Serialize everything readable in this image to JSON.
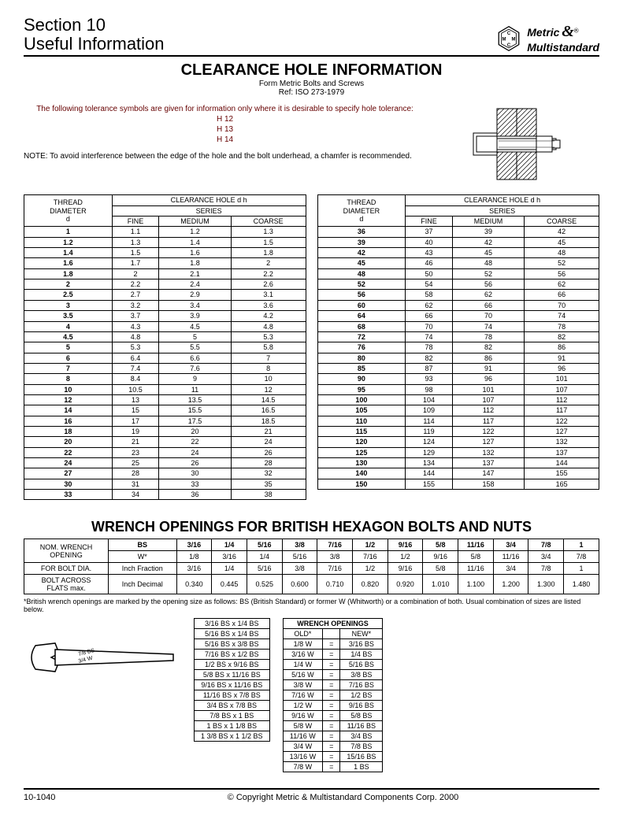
{
  "header": {
    "section_line1": "Section 10",
    "section_line2": "Useful Information",
    "brand1": "Metric",
    "brand2": "Multistandard",
    "amp": "&"
  },
  "title": "CLEARANCE HOLE INFORMATION",
  "subtitle1": "Form Metric Bolts and Screws",
  "subtitle2": "Ref: ISO 273-1979",
  "intro": {
    "lead": "The following tolerance symbols are given for information only where it is desirable to specify hole tolerance:",
    "t1": "H 12",
    "t2": "H 13",
    "t3": "H 14",
    "note": "NOTE: To avoid interference between the edge of the hole and the bolt underhead, a chamfer is recommended."
  },
  "clearTableHead": {
    "thread": "THREAD DIAMETER d",
    "clear": "CLEARANCE HOLE d h",
    "series": "SERIES",
    "fine": "FINE",
    "medium": "MEDIUM",
    "coarse": "COARSE"
  },
  "clear1": [
    [
      "1",
      "1.1",
      "1.2",
      "1.3"
    ],
    [
      "1.2",
      "1.3",
      "1.4",
      "1.5"
    ],
    [
      "1.4",
      "1.5",
      "1.6",
      "1.8"
    ],
    [
      "1.6",
      "1.7",
      "1.8",
      "2"
    ],
    [
      "1.8",
      "2",
      "2.1",
      "2.2"
    ],
    [
      "2",
      "2.2",
      "2.4",
      "2.6"
    ],
    [
      "2.5",
      "2.7",
      "2.9",
      "3.1"
    ],
    [
      "3",
      "3.2",
      "3.4",
      "3.6"
    ],
    [
      "3.5",
      "3.7",
      "3.9",
      "4.2"
    ],
    [
      "4",
      "4.3",
      "4.5",
      "4.8"
    ],
    [
      "4.5",
      "4.8",
      "5",
      "5.3"
    ],
    [
      "5",
      "5.3",
      "5.5",
      "5.8"
    ],
    [
      "6",
      "6.4",
      "6.6",
      "7"
    ],
    [
      "7",
      "7.4",
      "7.6",
      "8"
    ],
    [
      "8",
      "8.4",
      "9",
      "10"
    ],
    [
      "10",
      "10.5",
      "11",
      "12"
    ],
    [
      "12",
      "13",
      "13.5",
      "14.5"
    ],
    [
      "14",
      "15",
      "15.5",
      "16.5"
    ],
    [
      "16",
      "17",
      "17.5",
      "18.5"
    ],
    [
      "18",
      "19",
      "20",
      "21"
    ],
    [
      "20",
      "21",
      "22",
      "24"
    ],
    [
      "22",
      "23",
      "24",
      "26"
    ],
    [
      "24",
      "25",
      "26",
      "28"
    ],
    [
      "27",
      "28",
      "30",
      "32"
    ],
    [
      "30",
      "31",
      "33",
      "35"
    ],
    [
      "33",
      "34",
      "36",
      "38"
    ]
  ],
  "clear2": [
    [
      "36",
      "37",
      "39",
      "42"
    ],
    [
      "39",
      "40",
      "42",
      "45"
    ],
    [
      "42",
      "43",
      "45",
      "48"
    ],
    [
      "45",
      "46",
      "48",
      "52"
    ],
    [
      "48",
      "50",
      "52",
      "56"
    ],
    [
      "52",
      "54",
      "56",
      "62"
    ],
    [
      "56",
      "58",
      "62",
      "66"
    ],
    [
      "60",
      "62",
      "66",
      "70"
    ],
    [
      "64",
      "66",
      "70",
      "74"
    ],
    [
      "68",
      "70",
      "74",
      "78"
    ],
    [
      "72",
      "74",
      "78",
      "82"
    ],
    [
      "76",
      "78",
      "82",
      "86"
    ],
    [
      "80",
      "82",
      "86",
      "91"
    ],
    [
      "85",
      "87",
      "91",
      "96"
    ],
    [
      "90",
      "93",
      "96",
      "101"
    ],
    [
      "95",
      "98",
      "101",
      "107"
    ],
    [
      "100",
      "104",
      "107",
      "112"
    ],
    [
      "105",
      "109",
      "112",
      "117"
    ],
    [
      "110",
      "114",
      "117",
      "122"
    ],
    [
      "115",
      "119",
      "122",
      "127"
    ],
    [
      "120",
      "124",
      "127",
      "132"
    ],
    [
      "125",
      "129",
      "132",
      "137"
    ],
    [
      "130",
      "134",
      "137",
      "144"
    ],
    [
      "140",
      "144",
      "147",
      "155"
    ],
    [
      "150",
      "155",
      "158",
      "165"
    ]
  ],
  "section2_title": "WRENCH OPENINGS FOR BRITISH HEXAGON BOLTS AND NUTS",
  "wrench": {
    "row_labels": [
      "NOM. WRENCH OPENING",
      "",
      "FOR BOLT DIA.",
      "",
      "BOLT ACROSS FLATS max.",
      ""
    ],
    "r1": [
      "BS",
      "3/16",
      "1/4",
      "5/16",
      "3/8",
      "7/16",
      "1/2",
      "9/16",
      "5/8",
      "11/16",
      "3/4",
      "7/8",
      "1"
    ],
    "r2": [
      "W*",
      "1/8",
      "3/16",
      "1/4",
      "5/16",
      "3/8",
      "7/16",
      "1/2",
      "9/16",
      "5/8",
      "11/16",
      "3/4",
      "7/8"
    ],
    "r3a": "Inch Fraction",
    "r3": [
      "3/16",
      "1/4",
      "5/16",
      "3/8",
      "7/16",
      "1/2",
      "9/16",
      "5/8",
      "11/16",
      "3/4",
      "7/8",
      "1"
    ],
    "r4a": "Inch Decimal",
    "r4": [
      "0.340",
      "0.445",
      "0.525",
      "0.600",
      "0.710",
      "0.820",
      "0.920",
      "1.010",
      "1.100",
      "1.200",
      "1.300",
      "1.480"
    ]
  },
  "wrench_note": "*British wrench openings are marked by the opening size as follows: BS (British Standard) or former W (Whitworth) or a combination of both. Usual combination of sizes are listed below.",
  "combos": [
    "3/16 BS x 1/4 BS",
    "5/16 BS x 1/4 BS",
    "5/16 BS x 3/8 BS",
    "7/16 BS x 1/2 BS",
    "1/2 BS x 9/16 BS",
    "5/8 BS x 11/16 BS",
    "9/16 BS x 11/16 BS",
    "11/16 BS x 7/8 BS",
    "3/4 BS x 7/8 BS",
    "7/8 BS x 1 BS",
    "1 BS x 1 1/8 BS",
    "1 3/8 BS x 1 1/2 BS"
  ],
  "openings_title": "WRENCH OPENINGS",
  "openings_head": [
    "OLD*",
    "",
    "NEW*"
  ],
  "openings": [
    [
      "1/8 W",
      "=",
      "3/16 BS"
    ],
    [
      "3/16 W",
      "=",
      "1/4 BS"
    ],
    [
      "1/4 W",
      "=",
      "5/16 BS"
    ],
    [
      "5/16 W",
      "=",
      "3/8 BS"
    ],
    [
      "3/8 W",
      "=",
      "7/16 BS"
    ],
    [
      "7/16 W",
      "=",
      "1/2 BS"
    ],
    [
      "1/2 W",
      "=",
      "9/16 BS"
    ],
    [
      "9/16 W",
      "=",
      "5/8 BS"
    ],
    [
      "5/8 W",
      "=",
      "11/16 BS"
    ],
    [
      "11/16 W",
      "=",
      "3/4 BS"
    ],
    [
      "3/4 W",
      "=",
      "7/8 BS"
    ],
    [
      "13/16 W",
      "=",
      "15/16 BS"
    ],
    [
      "7/8 W",
      "=",
      "1 BS"
    ]
  ],
  "wrench_label1": "7/8 BS",
  "wrench_label2": "3/4 W",
  "footer": {
    "page": "10-1040",
    "copyright": "© Copyright Metric & Multistandard Components Corp.  2000"
  }
}
